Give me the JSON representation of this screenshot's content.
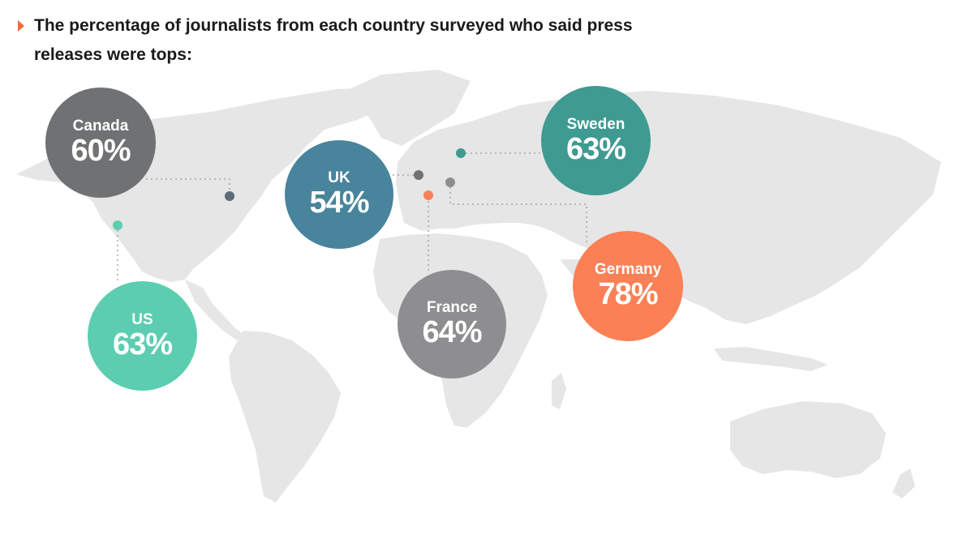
{
  "title": {
    "line1": "The percentage of journalists from each country surveyed who said press",
    "line2": "releases were tops:"
  },
  "map": {
    "land_color": "#e6e6e6",
    "connector_color": "#9a9a9a"
  },
  "countries": [
    {
      "name": "Canada",
      "value": "60%",
      "color": "#707173"
    },
    {
      "name": "UK",
      "value": "54%",
      "color": "#48849c"
    },
    {
      "name": "Sweden",
      "value": "63%",
      "color": "#3f9a92"
    },
    {
      "name": "US",
      "value": "63%",
      "color": "#5ccdb0"
    },
    {
      "name": "France",
      "value": "64%",
      "color": "#8e8e90"
    },
    {
      "name": "Germany",
      "value": "78%",
      "color": "#fb8055"
    }
  ],
  "markers": {
    "canada": "#5b6b78",
    "uk": "#707173",
    "sweden": "#3f9a92",
    "us": "#5ccdb0",
    "france": "#fb8055",
    "germany": "#8e8e90"
  }
}
